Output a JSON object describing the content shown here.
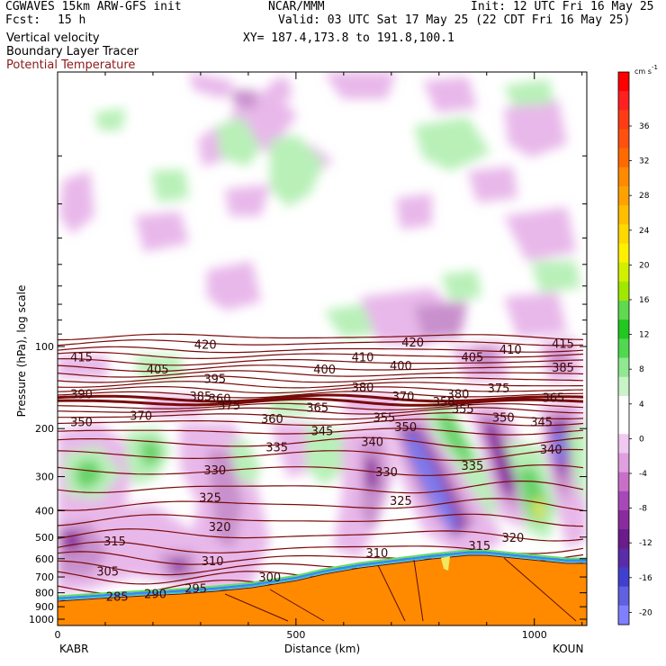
{
  "header": {
    "model": "CGWAVES 15km ARW-GFS init",
    "org": "NCAR/MMM",
    "init": "Init: 12 UTC Fri 16 May 25",
    "fcst_label": "Fcst:",
    "fcst_value": "15 h",
    "valid": "Valid: 03 UTC Sat 17 May 25 (22 CDT Fri 16 May 25)",
    "field1": "Vertical velocity",
    "xy": "XY= 187.4,173.8 to 191.8,100.1",
    "field2": "Boundary Layer Tracer",
    "field3": "Potential Temperature",
    "field3_color": "#8b1a1a"
  },
  "chart_data": {
    "type": "heatmap",
    "xlabel": "Distance (km)",
    "ylabel": "Pressure (hPa), log scale",
    "xlim": [
      0,
      1110
    ],
    "ylim": [
      1000,
      10
    ],
    "x_ticks": [
      0,
      500,
      1000
    ],
    "y_ticks": [
      100,
      200,
      300,
      400,
      500,
      600,
      700,
      800,
      900,
      1000
    ],
    "y_scale": "log",
    "endpoints": {
      "left": "KABR",
      "right": "KOUN"
    },
    "colorbar": {
      "unit": "cm s",
      "unit_exp": "-1",
      "ticks": [
        36,
        32,
        28,
        24,
        20,
        16,
        12,
        8,
        4,
        0,
        -4,
        -8,
        -12,
        -16,
        -20
      ]
    },
    "theta_labels": [
      {
        "v": "420",
        "x": 310,
        "p": 99
      },
      {
        "v": "420",
        "x": 745,
        "p": 97
      },
      {
        "v": "415",
        "x": 50,
        "p": 110
      },
      {
        "v": "415",
        "x": 1060,
        "p": 98
      },
      {
        "v": "410",
        "x": 640,
        "p": 110
      },
      {
        "v": "410",
        "x": 950,
        "p": 103
      },
      {
        "v": "405",
        "x": 210,
        "p": 122
      },
      {
        "v": "405",
        "x": 870,
        "p": 110
      },
      {
        "v": "400",
        "x": 560,
        "p": 122
      },
      {
        "v": "400",
        "x": 720,
        "p": 118
      },
      {
        "v": "395",
        "x": 330,
        "p": 132
      },
      {
        "v": "385",
        "x": 1060,
        "p": 120
      },
      {
        "v": "390",
        "x": 50,
        "p": 150
      },
      {
        "v": "385",
        "x": 300,
        "p": 153
      },
      {
        "v": "380",
        "x": 640,
        "p": 142
      },
      {
        "v": "380",
        "x": 840,
        "p": 150
      },
      {
        "v": "375",
        "x": 360,
        "p": 165
      },
      {
        "v": "375",
        "x": 925,
        "p": 143
      },
      {
        "v": "370",
        "x": 175,
        "p": 180
      },
      {
        "v": "370",
        "x": 725,
        "p": 153
      },
      {
        "v": "365",
        "x": 545,
        "p": 168
      },
      {
        "v": "365",
        "x": 1040,
        "p": 155
      },
      {
        "v": "360",
        "x": 450,
        "p": 185
      },
      {
        "v": "355",
        "x": 685,
        "p": 183
      },
      {
        "v": "355",
        "x": 850,
        "p": 170
      },
      {
        "v": "350",
        "x": 50,
        "p": 190
      },
      {
        "v": "350",
        "x": 730,
        "p": 198
      },
      {
        "v": "350",
        "x": 935,
        "p": 183
      },
      {
        "v": "345",
        "x": 555,
        "p": 205
      },
      {
        "v": "345",
        "x": 1015,
        "p": 190
      },
      {
        "v": "340",
        "x": 660,
        "p": 225
      },
      {
        "v": "340",
        "x": 1035,
        "p": 240
      },
      {
        "v": "335",
        "x": 460,
        "p": 235
      },
      {
        "v": "335",
        "x": 870,
        "p": 275
      },
      {
        "v": "330",
        "x": 330,
        "p": 285
      },
      {
        "v": "330",
        "x": 690,
        "p": 290
      },
      {
        "v": "325",
        "x": 320,
        "p": 360
      },
      {
        "v": "325",
        "x": 720,
        "p": 370
      },
      {
        "v": "320",
        "x": 340,
        "p": 460
      },
      {
        "v": "320",
        "x": 955,
        "p": 505
      },
      {
        "v": "315",
        "x": 120,
        "p": 520
      },
      {
        "v": "315",
        "x": 885,
        "p": 540
      },
      {
        "v": "310",
        "x": 325,
        "p": 615
      },
      {
        "v": "310",
        "x": 670,
        "p": 575
      },
      {
        "v": "305",
        "x": 105,
        "p": 670
      },
      {
        "v": "300",
        "x": 445,
        "p": 705
      },
      {
        "v": "295",
        "x": 290,
        "p": 775
      },
      {
        "v": "290",
        "x": 205,
        "p": 810
      },
      {
        "v": "285",
        "x": 125,
        "p": 830
      },
      {
        "v": "358",
        "x": 810,
        "p": 160
      },
      {
        "v": "360",
        "x": 340,
        "p": 156
      }
    ]
  }
}
